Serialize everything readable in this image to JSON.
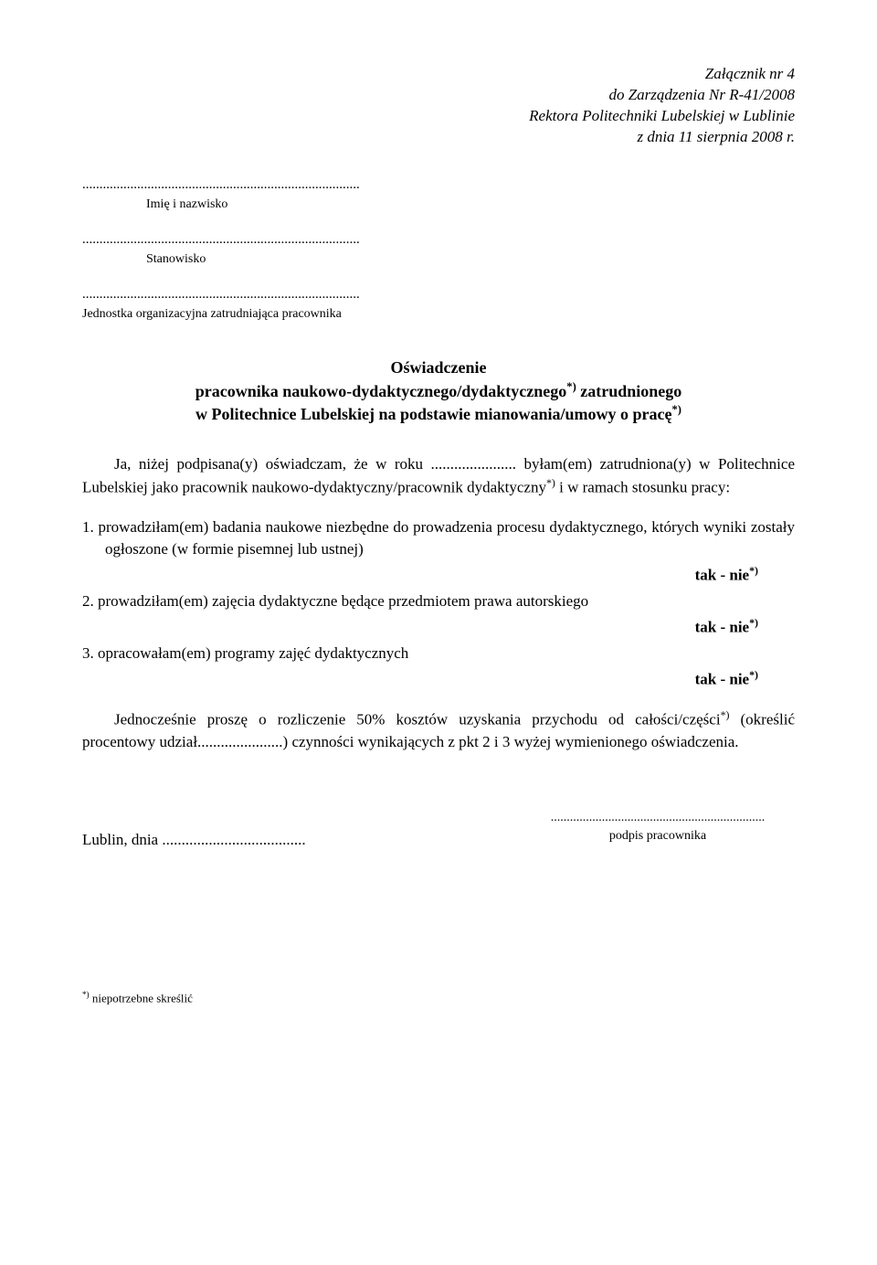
{
  "header": {
    "line1": "Załącznik nr 4",
    "line2": "do Zarządzenia Nr R-41/2008",
    "line3": "Rektora Politechniki Lubelskiej w Lublinie",
    "line4": "z dnia 11 sierpnia 2008 r."
  },
  "fields": {
    "dots1": ".................................................................................",
    "label1": "Imię i nazwisko",
    "dots2": ".................................................................................",
    "label2": "Stanowisko",
    "dots3": ".................................................................................",
    "label3": "Jednostka organizacyjna zatrudniająca pracownika"
  },
  "title": {
    "main": "Oświadczenie",
    "sub1": "pracownika naukowo-dydaktycznego/dydaktycznego",
    "sub1_sup": "*)",
    "sub1_tail": " zatrudnionego",
    "sub2": "w Politechnice Lubelskiej na podstawie mianowania/umowy o pracę",
    "sub2_sup": "*)"
  },
  "para1": {
    "pre": "Ja, niżej podpisana(y) oświadczam, że w roku ...................... byłam(em) zatrudniona(y) w Politechnice Lubelskiej jako pracownik naukowo-dydaktyczny/pracownik dydaktyczny",
    "sup": "*)",
    "post": " i w ramach stosunku pracy:"
  },
  "items": {
    "i1": "1. prowadziłam(em) badania naukowe niezbędne do prowadzenia procesu dydaktycznego, których wyniki zostały ogłoszone (w formie pisemnej lub ustnej)",
    "i2_pre": "2. prowadziłam(em)  zajęcia  dydaktyczne  będące  przedmiotem  prawa autorskiego",
    "i3": "3. opracowałam(em) programy zajęć dydaktycznych"
  },
  "taknie": {
    "tak": "tak",
    "sep": "   -   ",
    "nie": "nie",
    "sup": "*)"
  },
  "closing": {
    "pre": "Jednocześnie proszę o rozliczenie 50% kosztów uzyskania przychodu od całości/części",
    "sup": "*)",
    "mid": " (określić procentowy udział......................) czynności wynikających z  pkt  2  i  3 wyżej wymienionego oświadczenia."
  },
  "signature": {
    "dots": "...................................................................",
    "label": "podpis pracownika",
    "lublin": "Lublin, dnia ....................................."
  },
  "footnote": {
    "sup": "*)",
    "text": "  niepotrzebne skreślić"
  },
  "colors": {
    "background": "#ffffff",
    "text": "#000000"
  }
}
